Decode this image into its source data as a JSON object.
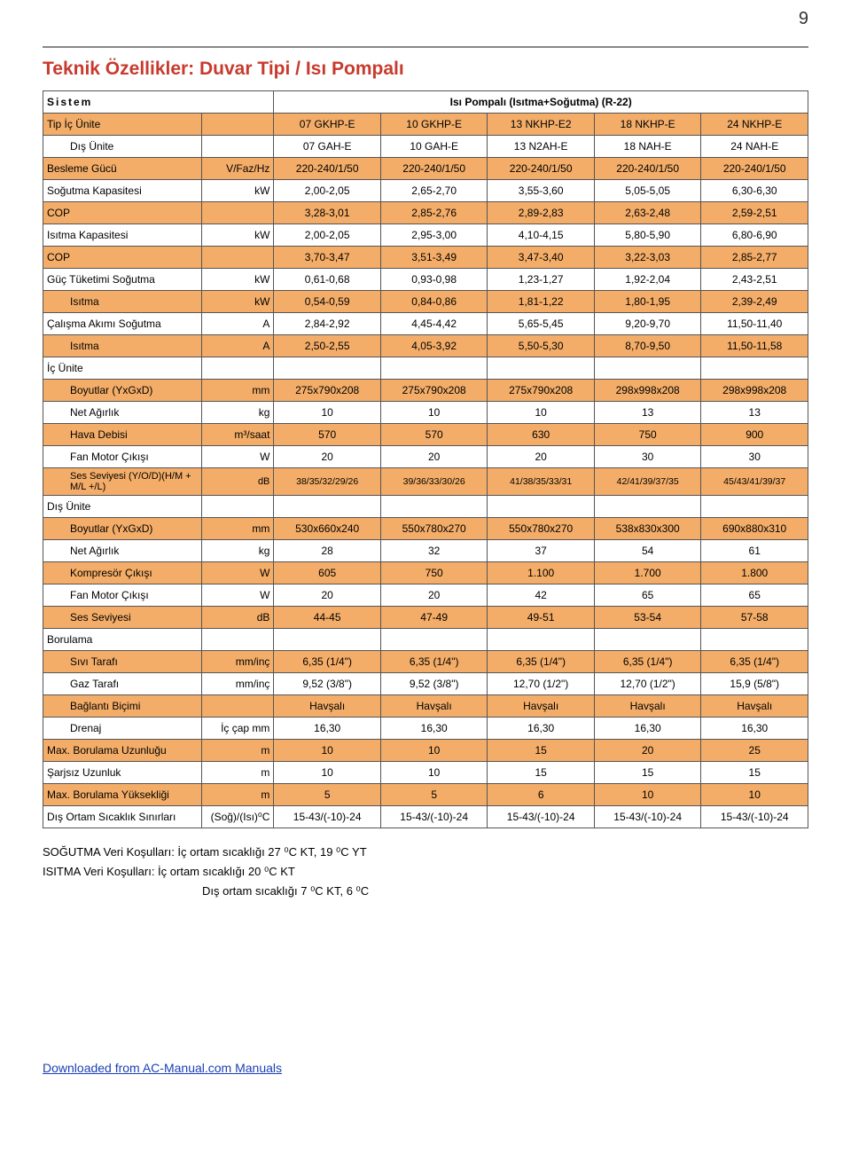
{
  "page_number": "9",
  "title": "Teknik Özellikler: Duvar Tipi / Isı Pompalı",
  "header": {
    "sistem": "Sistem",
    "band": "Isı Pompalı (Isıtma+Soğutma) (R-22)"
  },
  "colors": {
    "band_bg": "#f3ad68",
    "title_color": "#c73b2e",
    "border": "#555555",
    "link": "#1a3fb5"
  },
  "rows": [
    {
      "band": true,
      "label": "Tip İç Ünite",
      "unit": "",
      "cells": [
        "07 GKHP-E",
        "10 GKHP-E",
        "13 NKHP-E2",
        "18 NKHP-E",
        "24 NKHP-E"
      ],
      "indent": 0
    },
    {
      "band": false,
      "label": "Dış Ünite",
      "unit": "",
      "cells": [
        "07 GAH-E",
        "10 GAH-E",
        "13 N2AH-E",
        "18 NAH-E",
        "24 NAH-E"
      ],
      "indent": 1
    },
    {
      "band": true,
      "label": "Besleme Gücü",
      "unit": "V/Faz/Hz",
      "cells": [
        "220-240/1/50",
        "220-240/1/50",
        "220-240/1/50",
        "220-240/1/50",
        "220-240/1/50"
      ],
      "indent": 0
    },
    {
      "band": false,
      "label": "Soğutma Kapasitesi",
      "unit": "kW",
      "cells": [
        "2,00-2,05",
        "2,65-2,70",
        "3,55-3,60",
        "5,05-5,05",
        "6,30-6,30"
      ],
      "indent": 0
    },
    {
      "band": true,
      "label": "COP",
      "unit": "",
      "cells": [
        "3,28-3,01",
        "2,85-2,76",
        "2,89-2,83",
        "2,63-2,48",
        "2,59-2,51"
      ],
      "indent": 0
    },
    {
      "band": false,
      "label": "Isıtma Kapasitesi",
      "unit": "kW",
      "cells": [
        "2,00-2,05",
        "2,95-3,00",
        "4,10-4,15",
        "5,80-5,90",
        "6,80-6,90"
      ],
      "indent": 0
    },
    {
      "band": true,
      "label": "COP",
      "unit": "",
      "cells": [
        "3,70-3,47",
        "3,51-3,49",
        "3,47-3,40",
        "3,22-3,03",
        "2,85-2,77"
      ],
      "indent": 0
    },
    {
      "band": false,
      "label": "Güç Tüketimi   Soğutma",
      "unit": "kW",
      "cells": [
        "0,61-0,68",
        "0,93-0,98",
        "1,23-1,27",
        "1,92-2,04",
        "2,43-2,51"
      ],
      "indent": 0
    },
    {
      "band": true,
      "label": "Isıtma",
      "unit": "kW",
      "cells": [
        "0,54-0,59",
        "0,84-0,86",
        "1,81-1,22",
        "1,80-1,95",
        "2,39-2,49"
      ],
      "indent": 2
    },
    {
      "band": false,
      "label": "Çalışma Akımı   Soğutma",
      "unit": "A",
      "cells": [
        "2,84-2,92",
        "4,45-4,42",
        "5,65-5,45",
        "9,20-9,70",
        "11,50-11,40"
      ],
      "indent": 0
    },
    {
      "band": true,
      "label": "Isıtma",
      "unit": "A",
      "cells": [
        "2,50-2,55",
        "4,05-3,92",
        "5,50-5,30",
        "8,70-9,50",
        "11,50-11,58"
      ],
      "indent": 2
    },
    {
      "band": false,
      "label": "İç Ünite",
      "unit": "",
      "cells": [
        "",
        "",
        "",
        "",
        ""
      ],
      "indent": 0,
      "section": true
    },
    {
      "band": true,
      "label": "Boyutlar (YxGxD)",
      "unit": "mm",
      "cells": [
        "275x790x208",
        "275x790x208",
        "275x790x208",
        "298x998x208",
        "298x998x208"
      ],
      "indent": 1
    },
    {
      "band": false,
      "label": "Net Ağırlık",
      "unit": "kg",
      "cells": [
        "10",
        "10",
        "10",
        "13",
        "13"
      ],
      "indent": 1
    },
    {
      "band": true,
      "label": "Hava Debisi",
      "unit": "m³/saat",
      "cells": [
        "570",
        "570",
        "630",
        "750",
        "900"
      ],
      "indent": 1
    },
    {
      "band": false,
      "label": "Fan Motor Çıkışı",
      "unit": "W",
      "cells": [
        "20",
        "20",
        "20",
        "30",
        "30"
      ],
      "indent": 1
    },
    {
      "band": true,
      "label": "Ses Seviyesi (Y/O/D)(H/M + M/L +/L)",
      "unit": "dB",
      "cells": [
        "38/35/32/29/26",
        "39/36/33/30/26",
        "41/38/35/33/31",
        "42/41/39/37/35",
        "45/43/41/39/37"
      ],
      "indent": 1,
      "small": true
    },
    {
      "band": false,
      "label": "Dış Ünite",
      "unit": "",
      "cells": [
        "",
        "",
        "",
        "",
        ""
      ],
      "indent": 0,
      "section": true
    },
    {
      "band": true,
      "label": "Boyutlar (YxGxD)",
      "unit": "mm",
      "cells": [
        "530x660x240",
        "550x780x270",
        "550x780x270",
        "538x830x300",
        "690x880x310"
      ],
      "indent": 1
    },
    {
      "band": false,
      "label": "Net Ağırlık",
      "unit": "kg",
      "cells": [
        "28",
        "32",
        "37",
        "54",
        "61"
      ],
      "indent": 1
    },
    {
      "band": true,
      "label": "Kompresör Çıkışı",
      "unit": "W",
      "cells": [
        "605",
        "750",
        "1.100",
        "1.700",
        "1.800"
      ],
      "indent": 1
    },
    {
      "band": false,
      "label": "Fan Motor Çıkışı",
      "unit": "W",
      "cells": [
        "20",
        "20",
        "42",
        "65",
        "65"
      ],
      "indent": 1
    },
    {
      "band": true,
      "label": "Ses Seviyesi",
      "unit": "dB",
      "cells": [
        "44-45",
        "47-49",
        "49-51",
        "53-54",
        "57-58"
      ],
      "indent": 1
    },
    {
      "band": false,
      "label": "Borulama",
      "unit": "",
      "cells": [
        "",
        "",
        "",
        "",
        ""
      ],
      "indent": 0,
      "section": true
    },
    {
      "band": true,
      "label": "Sıvı Tarafı",
      "unit": "mm/inç",
      "cells": [
        "6,35 (1/4\")",
        "6,35 (1/4\")",
        "6,35 (1/4\")",
        "6,35 (1/4\")",
        "6,35 (1/4\")"
      ],
      "indent": 1
    },
    {
      "band": false,
      "label": "Gaz Tarafı",
      "unit": "mm/inç",
      "cells": [
        "9,52 (3/8\")",
        "9,52 (3/8\")",
        "12,70 (1/2\")",
        "12,70 (1/2\")",
        "15,9 (5/8\")"
      ],
      "indent": 1
    },
    {
      "band": true,
      "label": "Bağlantı Biçimi",
      "unit": "",
      "cells": [
        "Havşalı",
        "Havşalı",
        "Havşalı",
        "Havşalı",
        "Havşalı"
      ],
      "indent": 1
    },
    {
      "band": false,
      "label": "Drenaj",
      "unit": "İç çap mm",
      "cells": [
        "16,30",
        "16,30",
        "16,30",
        "16,30",
        "16,30"
      ],
      "indent": 1
    },
    {
      "band": true,
      "label": "Max. Borulama Uzunluğu",
      "unit": "m",
      "cells": [
        "10",
        "10",
        "15",
        "20",
        "25"
      ],
      "indent": 0
    },
    {
      "band": false,
      "label": "Şarjsız Uzunluk",
      "unit": "m",
      "cells": [
        "10",
        "10",
        "15",
        "15",
        "15"
      ],
      "indent": 0
    },
    {
      "band": true,
      "label": "Max. Borulama Yüksekliği",
      "unit": "m",
      "cells": [
        "5",
        "5",
        "6",
        "10",
        "10"
      ],
      "indent": 0
    },
    {
      "band": false,
      "label": "Dış Ortam Sıcaklık Sınırları",
      "unit": "(Soğ)/(Isı)⁰C",
      "cells": [
        "15-43/(-10)-24",
        "15-43/(-10)-24",
        "15-43/(-10)-24",
        "15-43/(-10)-24",
        "15-43/(-10)-24"
      ],
      "indent": 0
    }
  ],
  "notes": {
    "line1": "SOĞUTMA Veri Koşulları: İç ortam sıcaklığı 27 ⁰C KT, 19 ⁰C YT",
    "line2": "ISITMA Veri Koşulları: İç ortam sıcaklığı 20 ⁰C KT",
    "line3": "Dış ortam sıcaklığı 7 ⁰C KT, 6 ⁰C"
  },
  "footer": {
    "prefix": "Downloaded from ",
    "link_text": "AC-Manual.com Manuals"
  }
}
